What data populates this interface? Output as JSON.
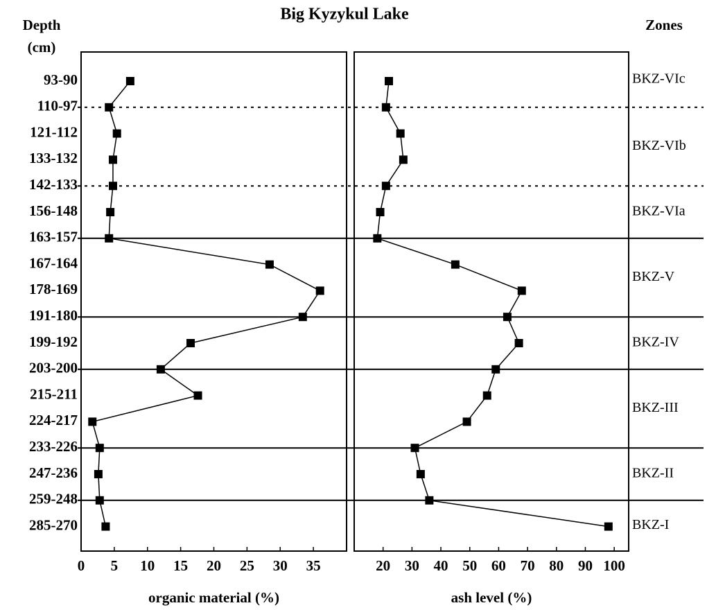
{
  "title": "Big Kyzykul Lake",
  "y_axis_label": [
    "Depth",
    "(cm)"
  ],
  "zones_label": "Zones",
  "categories": [
    "93-90",
    "110-97",
    "121-112",
    "133-132",
    "142-133",
    "156-148",
    "163-157",
    "167-164",
    "178-169",
    "191-180",
    "199-192",
    "203-200",
    "215-211",
    "224-217",
    "233-226",
    "247-236",
    "259-248",
    "285-270"
  ],
  "zones": [
    {
      "name": "BKZ-VIc",
      "lower_boundary": "110-97",
      "line": "dotted"
    },
    {
      "name": "BKZ-VIb",
      "lower_boundary": "142-133",
      "line": "dotted"
    },
    {
      "name": "BKZ-VIa",
      "lower_boundary": "163-157",
      "line": "solid"
    },
    {
      "name": "BKZ-V",
      "lower_boundary": "191-180",
      "line": "solid"
    },
    {
      "name": "BKZ-IV",
      "lower_boundary": "203-200",
      "line": "solid"
    },
    {
      "name": "BKZ-III",
      "lower_boundary": "233-226",
      "line": "solid"
    },
    {
      "name": "BKZ-II",
      "lower_boundary": "259-248",
      "line": "solid"
    },
    {
      "name": "BKZ-I",
      "lower_boundary": null,
      "line": "solid"
    }
  ],
  "chart_data": [
    {
      "type": "line",
      "xlabel": "organic material (%)",
      "color": "#000000",
      "xlim": [
        0,
        40
      ],
      "xticks": [
        0,
        5,
        10,
        15,
        20,
        25,
        30,
        35
      ],
      "values": [
        7.4,
        4.2,
        5.4,
        4.8,
        4.8,
        4.4,
        4.2,
        28.4,
        36.0,
        33.4,
        16.5,
        12.0,
        17.6,
        1.7,
        2.8,
        2.6,
        2.8,
        3.7
      ]
    },
    {
      "type": "line",
      "xlabel": "ash level (%)",
      "color": "#000000",
      "xlim": [
        10,
        105
      ],
      "xticks": [
        20,
        30,
        40,
        50,
        60,
        70,
        80,
        90,
        100
      ],
      "values": [
        22,
        21,
        26,
        27,
        21,
        19,
        18,
        45,
        68,
        63,
        67,
        59,
        56,
        49,
        31,
        33,
        36,
        98
      ]
    }
  ]
}
